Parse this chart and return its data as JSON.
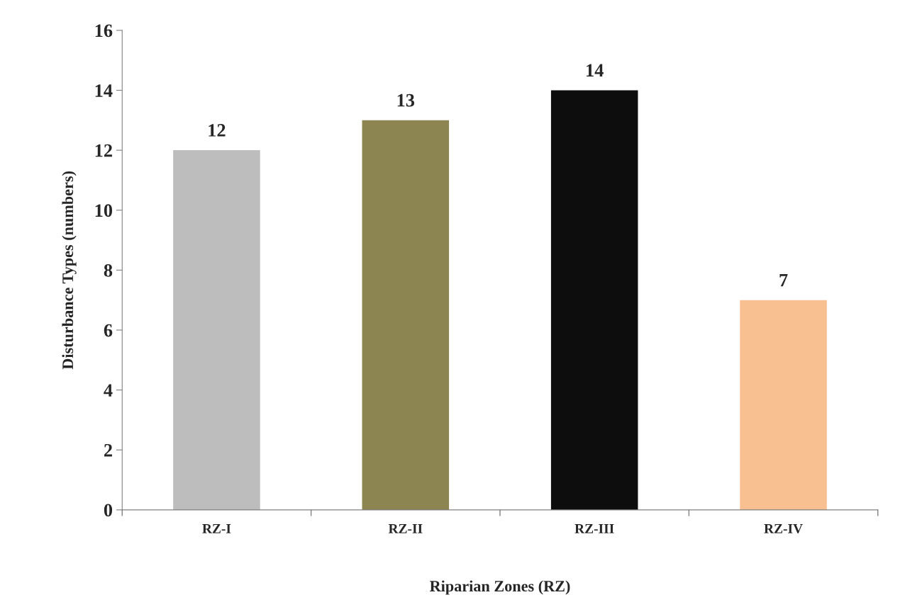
{
  "chart_data": {
    "type": "bar",
    "xlabel": "Riparian Zones (RZ)",
    "ylabel": "Disturbance Types (numbers)",
    "categories": [
      "RZ-I",
      "RZ-II",
      "RZ-III",
      "RZ-IV"
    ],
    "values": [
      12,
      13,
      14,
      7
    ],
    "colors": [
      "#bdbdbd",
      "#8c8551",
      "#0d0d0d",
      "#f8bf90"
    ],
    "ylim": [
      0,
      16
    ],
    "yticks": [
      0,
      2,
      4,
      6,
      8,
      10,
      12,
      14,
      16
    ],
    "data_labels": true,
    "grid": false,
    "legend": false
  }
}
